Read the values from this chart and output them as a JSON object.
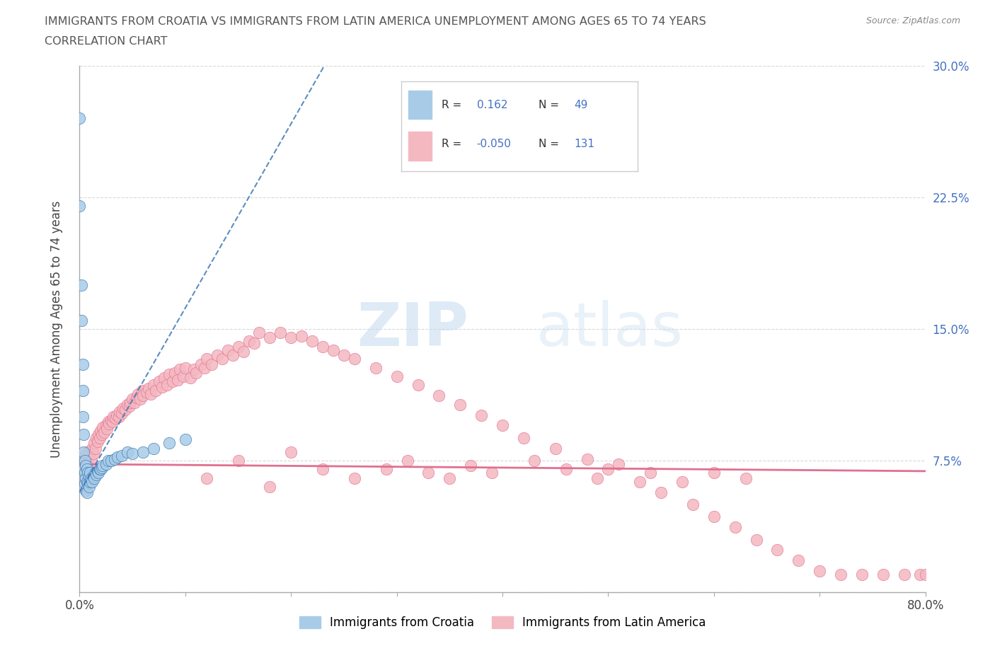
{
  "title_line1": "IMMIGRANTS FROM CROATIA VS IMMIGRANTS FROM LATIN AMERICA UNEMPLOYMENT AMONG AGES 65 TO 74 YEARS",
  "title_line2": "CORRELATION CHART",
  "source": "Source: ZipAtlas.com",
  "ylabel": "Unemployment Among Ages 65 to 74 years",
  "xlim": [
    0.0,
    0.8
  ],
  "ylim": [
    0.0,
    0.3
  ],
  "croatia_R": 0.162,
  "croatia_N": 49,
  "latin_R": -0.05,
  "latin_N": 131,
  "croatia_color": "#a8cce8",
  "croatia_line_color": "#3572b0",
  "latin_color": "#f4b8c1",
  "latin_line_color": "#e07090",
  "watermark_zip": "ZIP",
  "watermark_atlas": "atlas",
  "grid_color": "#d0d0d0",
  "title_color": "#555555",
  "legend_blue": "#4472c4",
  "right_axis_color": "#4472c4",
  "croatia_x": [
    0.0,
    0.0,
    0.002,
    0.002,
    0.003,
    0.003,
    0.003,
    0.004,
    0.004,
    0.004,
    0.005,
    0.005,
    0.005,
    0.006,
    0.006,
    0.006,
    0.007,
    0.007,
    0.007,
    0.008,
    0.008,
    0.009,
    0.009,
    0.01,
    0.01,
    0.011,
    0.012,
    0.013,
    0.014,
    0.015,
    0.016,
    0.017,
    0.018,
    0.019,
    0.02,
    0.021,
    0.022,
    0.025,
    0.027,
    0.03,
    0.033,
    0.036,
    0.04,
    0.045,
    0.05,
    0.06,
    0.07,
    0.085,
    0.1
  ],
  "croatia_y": [
    0.27,
    0.22,
    0.175,
    0.155,
    0.13,
    0.115,
    0.1,
    0.09,
    0.08,
    0.07,
    0.075,
    0.068,
    0.062,
    0.072,
    0.065,
    0.058,
    0.07,
    0.063,
    0.057,
    0.068,
    0.062,
    0.066,
    0.06,
    0.068,
    0.063,
    0.065,
    0.063,
    0.066,
    0.065,
    0.068,
    0.067,
    0.069,
    0.068,
    0.07,
    0.07,
    0.071,
    0.072,
    0.073,
    0.075,
    0.075,
    0.076,
    0.077,
    0.078,
    0.08,
    0.079,
    0.08,
    0.082,
    0.085,
    0.087
  ],
  "latin_x": [
    0.003,
    0.005,
    0.006,
    0.007,
    0.008,
    0.009,
    0.01,
    0.011,
    0.012,
    0.013,
    0.014,
    0.015,
    0.016,
    0.017,
    0.018,
    0.019,
    0.02,
    0.021,
    0.022,
    0.023,
    0.025,
    0.026,
    0.027,
    0.028,
    0.03,
    0.031,
    0.032,
    0.034,
    0.035,
    0.037,
    0.038,
    0.04,
    0.041,
    0.043,
    0.045,
    0.047,
    0.048,
    0.05,
    0.052,
    0.054,
    0.055,
    0.057,
    0.059,
    0.06,
    0.063,
    0.065,
    0.067,
    0.07,
    0.072,
    0.075,
    0.078,
    0.08,
    0.083,
    0.085,
    0.088,
    0.09,
    0.093,
    0.095,
    0.098,
    0.1,
    0.105,
    0.108,
    0.11,
    0.115,
    0.118,
    0.12,
    0.125,
    0.13,
    0.135,
    0.14,
    0.145,
    0.15,
    0.155,
    0.16,
    0.165,
    0.17,
    0.18,
    0.19,
    0.2,
    0.21,
    0.22,
    0.23,
    0.24,
    0.25,
    0.26,
    0.28,
    0.3,
    0.32,
    0.34,
    0.36,
    0.38,
    0.4,
    0.42,
    0.45,
    0.48,
    0.5,
    0.53,
    0.55,
    0.58,
    0.6,
    0.62,
    0.64,
    0.66,
    0.68,
    0.7,
    0.72,
    0.74,
    0.76,
    0.78,
    0.795,
    0.8,
    0.12,
    0.15,
    0.18,
    0.2,
    0.23,
    0.26,
    0.29,
    0.31,
    0.33,
    0.35,
    0.37,
    0.39,
    0.43,
    0.46,
    0.49,
    0.51,
    0.54,
    0.57,
    0.6,
    0.63
  ],
  "latin_y": [
    0.075,
    0.078,
    0.072,
    0.08,
    0.075,
    0.07,
    0.08,
    0.076,
    0.082,
    0.079,
    0.085,
    0.082,
    0.088,
    0.086,
    0.09,
    0.088,
    0.092,
    0.09,
    0.094,
    0.091,
    0.095,
    0.093,
    0.097,
    0.096,
    0.098,
    0.097,
    0.1,
    0.099,
    0.101,
    0.1,
    0.103,
    0.102,
    0.105,
    0.104,
    0.107,
    0.106,
    0.108,
    0.11,
    0.108,
    0.111,
    0.113,
    0.11,
    0.115,
    0.112,
    0.114,
    0.116,
    0.113,
    0.118,
    0.115,
    0.12,
    0.117,
    0.122,
    0.118,
    0.124,
    0.12,
    0.125,
    0.121,
    0.127,
    0.123,
    0.128,
    0.122,
    0.127,
    0.125,
    0.13,
    0.128,
    0.133,
    0.13,
    0.135,
    0.133,
    0.138,
    0.135,
    0.14,
    0.137,
    0.143,
    0.142,
    0.148,
    0.145,
    0.148,
    0.145,
    0.146,
    0.143,
    0.14,
    0.138,
    0.135,
    0.133,
    0.128,
    0.123,
    0.118,
    0.112,
    0.107,
    0.101,
    0.095,
    0.088,
    0.082,
    0.076,
    0.07,
    0.063,
    0.057,
    0.05,
    0.043,
    0.037,
    0.03,
    0.024,
    0.018,
    0.012,
    0.01,
    0.01,
    0.01,
    0.01,
    0.01,
    0.01,
    0.065,
    0.075,
    0.06,
    0.08,
    0.07,
    0.065,
    0.07,
    0.075,
    0.068,
    0.065,
    0.072,
    0.068,
    0.075,
    0.07,
    0.065,
    0.073,
    0.068,
    0.063,
    0.068,
    0.065
  ],
  "croatia_trend_x": [
    0.0,
    0.24
  ],
  "croatia_trend_y_start": 0.057,
  "croatia_trend_slope": 1.05,
  "latin_trend_x": [
    0.0,
    0.8
  ],
  "latin_trend_y_start": 0.073,
  "latin_trend_slope": -0.005
}
